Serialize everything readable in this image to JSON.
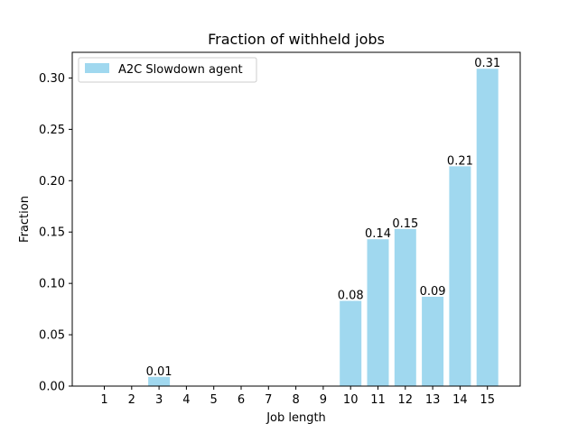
{
  "chart_data": {
    "type": "bar",
    "title": "Fraction of withheld jobs",
    "xlabel": "Job length",
    "ylabel": "Fraction",
    "categories": [
      "1",
      "2",
      "3",
      "4",
      "5",
      "6",
      "7",
      "8",
      "9",
      "10",
      "11",
      "12",
      "13",
      "14",
      "15"
    ],
    "series": [
      {
        "name": "A2C Slowdown agent",
        "color": "#a0d8ef",
        "values": [
          0,
          0,
          0.009,
          0,
          0,
          0,
          0,
          0,
          0,
          0.083,
          0.143,
          0.153,
          0.087,
          0.214,
          0.309
        ],
        "value_labels": [
          "",
          "",
          "0.01",
          "",
          "",
          "",
          "",
          "",
          "",
          "0.08",
          "0.14",
          "0.15",
          "0.09",
          "0.21",
          "0.31"
        ]
      }
    ],
    "ylim": [
      0,
      0.325
    ],
    "yticks": [
      0.0,
      0.05,
      0.1,
      0.15,
      0.2,
      0.25,
      0.3
    ],
    "ytick_labels": [
      "0.00",
      "0.05",
      "0.10",
      "0.15",
      "0.20",
      "0.25",
      "0.30"
    ],
    "grid": false,
    "legend": "top-left"
  }
}
